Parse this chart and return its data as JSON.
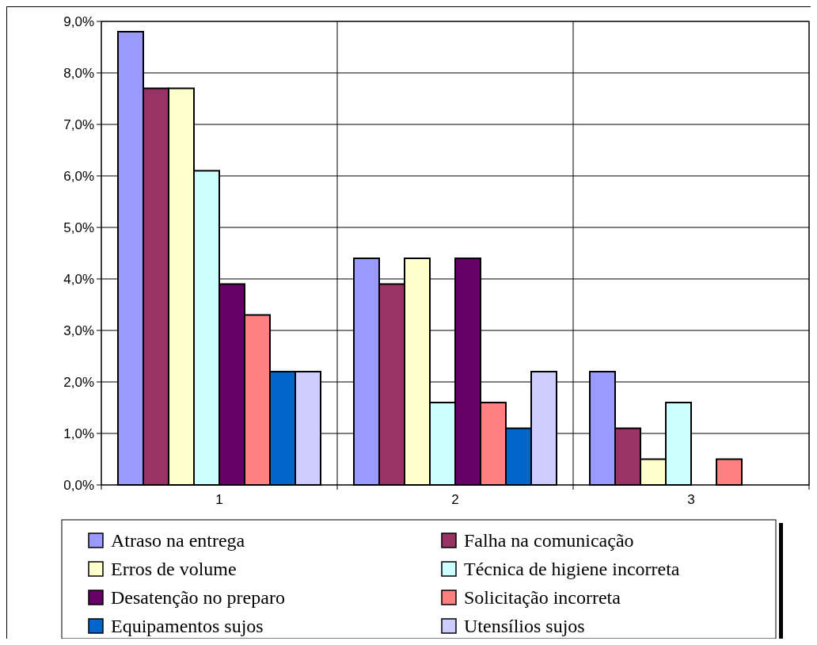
{
  "chart_data": {
    "type": "bar",
    "categories": [
      "1",
      "2",
      "3"
    ],
    "series": [
      {
        "name": "Atraso na entrega",
        "color": "#9999ff",
        "values": [
          8.8,
          4.4,
          2.2
        ]
      },
      {
        "name": "Falha na comunicação",
        "color": "#993366",
        "values": [
          7.7,
          3.9,
          1.1
        ]
      },
      {
        "name": "Erros de volume",
        "color": "#ffffcc",
        "values": [
          7.7,
          4.4,
          0.5
        ]
      },
      {
        "name": "Técnica de higiene incorreta",
        "color": "#ccffff",
        "values": [
          6.1,
          1.6,
          1.6
        ]
      },
      {
        "name": "Desatenção no preparo",
        "color": "#660066",
        "values": [
          3.9,
          4.4,
          0
        ]
      },
      {
        "name": "Solicitação incorreta",
        "color": "#ff8080",
        "values": [
          3.3,
          1.6,
          0.5
        ]
      },
      {
        "name": "Equipamentos sujos",
        "color": "#0066cc",
        "values": [
          2.2,
          1.1,
          0
        ]
      },
      {
        "name": "Utensílios sujos",
        "color": "#ccccff",
        "values": [
          2.2,
          2.2,
          0
        ]
      }
    ],
    "ylim": [
      0,
      9
    ],
    "yticks": [
      {
        "value": 0,
        "label": "0,0%"
      },
      {
        "value": 1,
        "label": "1,0%"
      },
      {
        "value": 2,
        "label": "2,0%"
      },
      {
        "value": 3,
        "label": "3,0%"
      },
      {
        "value": 4,
        "label": "4,0%"
      },
      {
        "value": 5,
        "label": "5,0%"
      },
      {
        "value": 6,
        "label": "6,0%"
      },
      {
        "value": 7,
        "label": "7,0%"
      },
      {
        "value": 8,
        "label": "8,0%"
      },
      {
        "value": 9,
        "label": "9,0%"
      }
    ],
    "grid": true,
    "legend": "bottom"
  }
}
